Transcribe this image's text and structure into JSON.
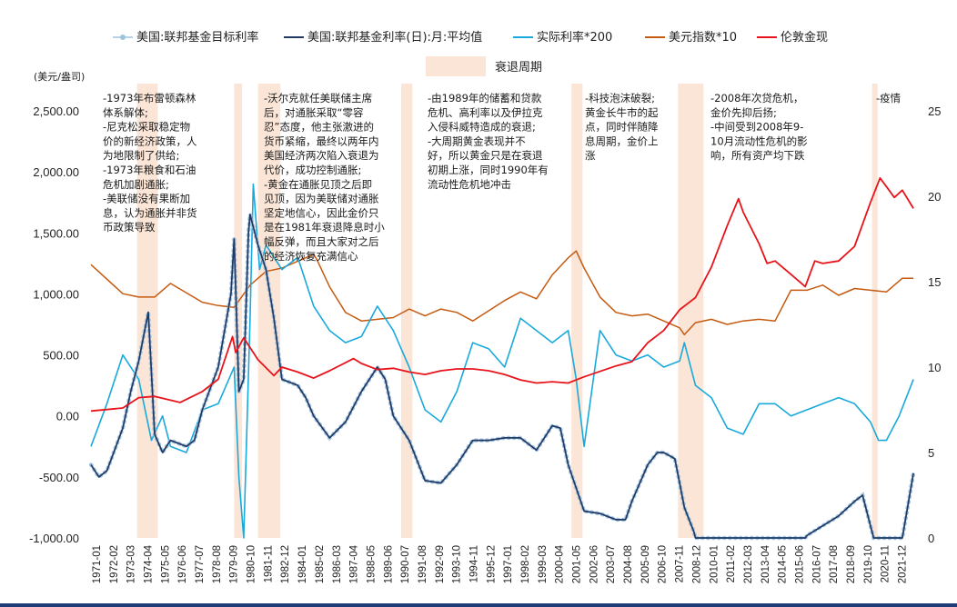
{
  "chart_data": {
    "type": "line",
    "y_left_unit": "(美元/盎司)",
    "y_left_range": [
      -1000,
      2500
    ],
    "y_left_ticks": [
      "2,500.00",
      "2,000.00",
      "1,500.00",
      "1,000.00",
      "500.00",
      "0.00",
      "-500.00",
      "-1,000.00"
    ],
    "y_right_range": [
      0,
      25
    ],
    "y_right_ticks": [
      "25",
      "20",
      "15",
      "10",
      "5",
      "0"
    ],
    "x_range": [
      1971.0,
      2022.75
    ],
    "x_ticks": [
      "1971-01",
      "1972-02",
      "1973-03",
      "1974-04",
      "1975-05",
      "1976-06",
      "1977-07",
      "1978-08",
      "1979-09",
      "1980-10",
      "1981-11",
      "1982-12",
      "1984-01",
      "1985-02",
      "1986-03",
      "1987-04",
      "1988-05",
      "1989-06",
      "1990-07",
      "1991-08",
      "1992-09",
      "1993-10",
      "1994-11",
      "1995-12",
      "1997-01",
      "1998-02",
      "1999-03",
      "2000-04",
      "2001-05",
      "2002-06",
      "2003-07",
      "2004-08",
      "2005-09",
      "2006-10",
      "2007-11",
      "2008-12",
      "2010-01",
      "2011-02",
      "2012-03",
      "2013-04",
      "2014-05",
      "2015-06",
      "2016-07",
      "2017-08",
      "2018-09",
      "2019-10",
      "2020-11",
      "2021-12"
    ],
    "legend": [
      {
        "name": "美国:联邦基金目标利率",
        "color": "#9ec3df",
        "style": "dots"
      },
      {
        "name": "美国:联邦基金利率(日):月:平均值",
        "color": "#1f3864",
        "style": "line"
      },
      {
        "name": "实际利率*200",
        "color": "#19a9dc",
        "style": "line"
      },
      {
        "name": "美元指数*10",
        "color": "#c55a11",
        "style": "line"
      },
      {
        "name": "伦敦金现",
        "color": "#e8141b",
        "style": "line"
      },
      {
        "name": "衰退周期",
        "color": "#fbe5d6",
        "style": "band"
      }
    ],
    "recessions": [
      [
        1973.9,
        1975.2
      ],
      [
        1980.0,
        1980.5
      ],
      [
        1981.5,
        1982.9
      ],
      [
        1990.5,
        1991.2
      ],
      [
        2001.2,
        2001.9
      ],
      [
        2007.9,
        2009.5
      ],
      [
        2020.1,
        2020.4
      ]
    ],
    "series": [
      {
        "name": "伦敦金现",
        "axis": "left",
        "x": [
          1971,
          1973,
          1974,
          1975,
          1976.6,
          1978,
          1979,
          1979.9,
          1980.1,
          1980.6,
          1981.5,
          1982.5,
          1983,
          1984,
          1985,
          1986,
          1987.5,
          1988,
          1989,
          1990,
          1991,
          1992,
          1993,
          1994,
          1995,
          1996,
          1997,
          1998,
          1999,
          2000,
          2001,
          2002,
          2003,
          2004,
          2005,
          2006,
          2007,
          2008,
          2009,
          2010,
          2011,
          2011.7,
          2012,
          2013,
          2013.5,
          2014,
          2015,
          2015.9,
          2016.5,
          2017,
          2018,
          2019,
          2020,
          2020.6,
          2021,
          2021.5,
          2022,
          2022.7
        ],
        "y": [
          40,
          65,
          150,
          160,
          110,
          200,
          300,
          650,
          520,
          640,
          460,
          330,
          400,
          360,
          310,
          370,
          470,
          430,
          380,
          390,
          360,
          340,
          370,
          385,
          385,
          370,
          340,
          295,
          270,
          280,
          270,
          320,
          365,
          410,
          445,
          600,
          700,
          870,
          970,
          1220,
          1560,
          1780,
          1670,
          1410,
          1250,
          1270,
          1160,
          1060,
          1270,
          1250,
          1270,
          1390,
          1750,
          1950,
          1880,
          1790,
          1850,
          1700
        ]
      },
      {
        "name": "美元指数*10",
        "axis": "right",
        "x": [
          1971,
          1973,
          1974,
          1975,
          1976,
          1978,
          1979,
          1980,
          1981,
          1982,
          1983,
          1984,
          1985,
          1985.2,
          1986,
          1987,
          1988,
          1990,
          1991,
          1992,
          1993,
          1994,
          1995,
          1996,
          1997,
          1998,
          1999,
          2000,
          2001,
          2001.5,
          2002,
          2003,
          2004,
          2005,
          2006,
          2007,
          2008,
          2008.3,
          2009,
          2010,
          2011,
          2012,
          2013,
          2014,
          2015,
          2016,
          2017,
          2018,
          2019,
          2020,
          2021,
          2022,
          2022.7
        ],
        "y": [
          16.0,
          14.3,
          14.1,
          14.1,
          14.9,
          13.8,
          13.6,
          13.5,
          14.8,
          15.6,
          15.8,
          16.2,
          16.6,
          16.3,
          14.7,
          13.2,
          12.7,
          12.9,
          13.4,
          13.0,
          13.4,
          13.2,
          12.7,
          13.3,
          13.9,
          14.4,
          14.0,
          15.4,
          16.4,
          16.8,
          15.8,
          14.1,
          13.2,
          13.0,
          13.1,
          12.7,
          12.3,
          11.9,
          12.6,
          12.8,
          12.5,
          12.7,
          12.8,
          12.7,
          14.5,
          14.5,
          14.8,
          14.2,
          14.6,
          14.5,
          14.4,
          15.2,
          15.2
        ]
      },
      {
        "name": "实际利率*200",
        "axis": "left",
        "x": [
          1971,
          1972,
          1973,
          1974,
          1974.8,
          1975.5,
          1976,
          1977,
          1978,
          1979,
          1980,
          1980.3,
          1980.6,
          1981,
          1981.2,
          1981.6,
          1982,
          1983,
          1984,
          1985,
          1986,
          1987,
          1988,
          1989,
          1990,
          1991,
          1992,
          1993,
          1994,
          1995,
          1996,
          1997,
          1998,
          1999,
          2000,
          2001,
          2001.5,
          2002,
          2003,
          2004,
          2005,
          2006,
          2007,
          2008,
          2008.3,
          2009,
          2010,
          2011,
          2012,
          2013,
          2014,
          2015,
          2016,
          2017,
          2018,
          2019,
          2020,
          2020.5,
          2021,
          2021.8,
          2022.7
        ],
        "y": [
          -250,
          100,
          500,
          300,
          -200,
          0,
          -250,
          -300,
          50,
          100,
          400,
          -500,
          -1000,
          800,
          1900,
          1200,
          1400,
          1200,
          1300,
          900,
          700,
          600,
          650,
          900,
          700,
          400,
          50,
          -50,
          200,
          600,
          550,
          400,
          800,
          700,
          600,
          700,
          300,
          -250,
          700,
          500,
          450,
          500,
          400,
          450,
          600,
          250,
          150,
          -100,
          -150,
          100,
          100,
          0,
          50,
          100,
          150,
          100,
          -50,
          -200,
          -200,
          0,
          300
        ]
      },
      {
        "name": "美国:联邦基金利率(日):月:平均值",
        "axis": "left",
        "x": [
          1971,
          1971.5,
          1972,
          1973,
          1973.5,
          1974,
          1974.6,
          1975,
          1975.5,
          1976,
          1977,
          1977.5,
          1978,
          1979,
          1979.8,
          1980,
          1980.3,
          1980.6,
          1980.9,
          1981,
          1981.5,
          1982,
          1982.5,
          1983,
          1984,
          1984.5,
          1985,
          1986,
          1987,
          1988,
          1989,
          1989.5,
          1990,
          1991,
          1992,
          1993,
          1994,
          1995,
          1996,
          1997,
          1998,
          1999,
          2000,
          2000.5,
          2001,
          2002,
          2003,
          2004,
          2004.6,
          2005,
          2006,
          2006.6,
          2007,
          2007.7,
          2008,
          2008.3,
          2008.9,
          2009,
          2015.9,
          2016,
          2017,
          2018,
          2019,
          2019.5,
          2020,
          2020.2,
          2021,
          2022,
          2022.7
        ],
        "y": [
          -400,
          -500,
          -450,
          -100,
          200,
          450,
          850,
          -150,
          -300,
          -200,
          -250,
          -200,
          50,
          400,
          1000,
          1450,
          200,
          300,
          1500,
          1650,
          1400,
          1200,
          800,
          300,
          250,
          150,
          0,
          -180,
          -50,
          200,
          400,
          300,
          0,
          -200,
          -530,
          -550,
          -400,
          -200,
          -200,
          -180,
          -180,
          -280,
          -80,
          -100,
          -400,
          -780,
          -800,
          -850,
          -850,
          -700,
          -400,
          -300,
          -300,
          -350,
          -550,
          -750,
          -950,
          -1000,
          -1000,
          -980,
          -900,
          -820,
          -700,
          -650,
          -900,
          -1000,
          -1000,
          -1000,
          -470
        ]
      }
    ],
    "annotations": [
      [
        "-1973年布雷顿森林",
        "体系解体;",
        "-尼克松采取稳定物",
        "价的新经济政策，人",
        "为地限制了供给;",
        "-1973年粮食和石油",
        "危机加剧通胀;",
        "-美联储没有果断加",
        "息，认为通胀并非货",
        "币政策导致"
      ],
      [
        "-沃尔克就任美联储主席",
        "后，对通胀采取“零容",
        "忍”态度，他主张激进的",
        "货币紧缩，最终以两年内",
        "美国经济两次陷入衰退为",
        "代价，成功控制通胀;",
        "-黄金在通胀见顶之后即",
        "见顶，因为美联储对通胀",
        "坚定地信心，因此金价只",
        "是在1981年衰退降息时小",
        "幅反弹，而且大家对之后",
        "的经济恢复充满信心"
      ],
      [
        "-由1989年的储蓄和贷款",
        "危机、高利率以及伊拉克",
        "入侵科威特造成的衰退;",
        "-大周期黄金表现并不",
        "好，所以黄金只是在衰退",
        "初期上涨，同时1990年有",
        "流动性危机地冲击"
      ],
      [
        "-科技泡沫破裂;",
        "黄金长牛市的起",
        "点，同时伴随降",
        "息周期，金价上",
        "涨"
      ],
      [
        "-2008年次贷危机，",
        "金价先抑后扬;",
        "-中间受到2008年9-",
        "10月流动性危机的影",
        "响，所有资产均下跌"
      ],
      [
        "-疫情"
      ]
    ]
  }
}
